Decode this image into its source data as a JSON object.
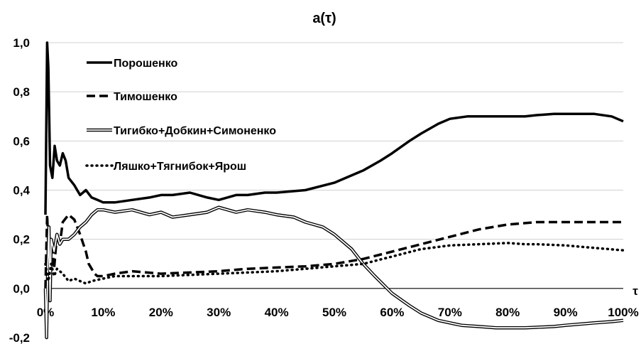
{
  "chart_data": {
    "type": "line",
    "title": "a(τ)",
    "xlabel": "τ",
    "ylabel": "",
    "xlim": [
      0,
      1
    ],
    "ylim": [
      -0.2,
      1.0
    ],
    "x_tick_labels": [
      "0%",
      "10%",
      "20%",
      "30%",
      "40%",
      "50%",
      "60%",
      "70%",
      "80%",
      "90%",
      "100%"
    ],
    "y_tick_labels": [
      "1,0",
      "0,8",
      "0,6",
      "0,4",
      "0,2",
      "0,0",
      "-0,2"
    ],
    "grid": "horizontal",
    "legend_position": "top-left",
    "series": [
      {
        "name": "Порошенко",
        "style": "solid",
        "color": "#000000",
        "x": [
          0.0,
          0.003,
          0.005,
          0.008,
          0.012,
          0.016,
          0.02,
          0.025,
          0.03,
          0.035,
          0.04,
          0.05,
          0.06,
          0.07,
          0.08,
          0.09,
          0.1,
          0.12,
          0.15,
          0.18,
          0.2,
          0.22,
          0.25,
          0.28,
          0.3,
          0.33,
          0.35,
          0.38,
          0.4,
          0.45,
          0.5,
          0.55,
          0.58,
          0.6,
          0.63,
          0.65,
          0.68,
          0.7,
          0.73,
          0.75,
          0.78,
          0.8,
          0.83,
          0.85,
          0.88,
          0.9,
          0.93,
          0.95,
          0.98,
          1.0
        ],
        "y": [
          0.3,
          1.0,
          0.9,
          0.5,
          0.45,
          0.58,
          0.52,
          0.5,
          0.55,
          0.52,
          0.45,
          0.42,
          0.38,
          0.4,
          0.37,
          0.36,
          0.35,
          0.35,
          0.36,
          0.37,
          0.38,
          0.38,
          0.39,
          0.37,
          0.36,
          0.38,
          0.38,
          0.39,
          0.39,
          0.4,
          0.43,
          0.48,
          0.52,
          0.55,
          0.6,
          0.63,
          0.67,
          0.69,
          0.7,
          0.7,
          0.7,
          0.7,
          0.7,
          0.705,
          0.71,
          0.71,
          0.71,
          0.71,
          0.7,
          0.68
        ]
      },
      {
        "name": "Тимошенко",
        "style": "dashed",
        "color": "#000000",
        "x": [
          0.0,
          0.003,
          0.006,
          0.01,
          0.015,
          0.02,
          0.025,
          0.03,
          0.04,
          0.05,
          0.06,
          0.07,
          0.075,
          0.08,
          0.085,
          0.09,
          0.1,
          0.12,
          0.15,
          0.2,
          0.25,
          0.3,
          0.35,
          0.4,
          0.45,
          0.5,
          0.55,
          0.6,
          0.65,
          0.7,
          0.75,
          0.8,
          0.85,
          0.9,
          0.95,
          1.0
        ],
        "y": [
          0.0,
          0.3,
          0.1,
          0.2,
          0.08,
          0.22,
          0.18,
          0.27,
          0.3,
          0.28,
          0.22,
          0.15,
          0.1,
          0.08,
          0.06,
          0.05,
          0.05,
          0.06,
          0.07,
          0.06,
          0.065,
          0.07,
          0.08,
          0.085,
          0.09,
          0.1,
          0.12,
          0.15,
          0.18,
          0.21,
          0.24,
          0.26,
          0.27,
          0.27,
          0.27,
          0.27
        ]
      },
      {
        "name": "Тигибко+Добкин+Симоненко",
        "style": "double",
        "color": "#000000",
        "x": [
          0.0,
          0.002,
          0.004,
          0.006,
          0.008,
          0.01,
          0.015,
          0.02,
          0.025,
          0.03,
          0.04,
          0.05,
          0.06,
          0.07,
          0.08,
          0.09,
          0.1,
          0.12,
          0.15,
          0.18,
          0.2,
          0.22,
          0.25,
          0.28,
          0.3,
          0.33,
          0.35,
          0.38,
          0.4,
          0.43,
          0.45,
          0.48,
          0.5,
          0.53,
          0.55,
          0.57,
          0.6,
          0.63,
          0.65,
          0.68,
          0.7,
          0.72,
          0.75,
          0.78,
          0.8,
          0.83,
          0.85,
          0.88,
          0.9,
          0.95,
          0.98,
          1.0
        ],
        "y": [
          0.0,
          -0.2,
          0.1,
          0.25,
          -0.05,
          0.2,
          0.15,
          0.22,
          0.18,
          0.2,
          0.2,
          0.22,
          0.25,
          0.27,
          0.3,
          0.32,
          0.32,
          0.31,
          0.32,
          0.3,
          0.31,
          0.29,
          0.3,
          0.31,
          0.33,
          0.31,
          0.32,
          0.31,
          0.3,
          0.29,
          0.27,
          0.25,
          0.22,
          0.16,
          0.1,
          0.05,
          -0.02,
          -0.07,
          -0.1,
          -0.13,
          -0.14,
          -0.15,
          -0.155,
          -0.16,
          -0.16,
          -0.16,
          -0.158,
          -0.155,
          -0.15,
          -0.14,
          -0.135,
          -0.13
        ]
      },
      {
        "name": "Ляшко+Тягнибок+Ярош",
        "style": "dotted",
        "color": "#000000",
        "x": [
          0.0,
          0.005,
          0.01,
          0.015,
          0.02,
          0.03,
          0.04,
          0.05,
          0.06,
          0.07,
          0.08,
          0.1,
          0.12,
          0.15,
          0.2,
          0.25,
          0.3,
          0.35,
          0.4,
          0.45,
          0.5,
          0.55,
          0.6,
          0.65,
          0.7,
          0.75,
          0.8,
          0.83,
          0.85,
          0.9,
          0.95,
          1.0
        ],
        "y": [
          0.1,
          0.03,
          0.1,
          0.05,
          0.08,
          0.06,
          0.03,
          0.04,
          0.03,
          0.02,
          0.03,
          0.04,
          0.05,
          0.05,
          0.05,
          0.055,
          0.06,
          0.065,
          0.07,
          0.08,
          0.09,
          0.1,
          0.13,
          0.16,
          0.175,
          0.18,
          0.185,
          0.18,
          0.18,
          0.175,
          0.165,
          0.155
        ]
      }
    ]
  }
}
